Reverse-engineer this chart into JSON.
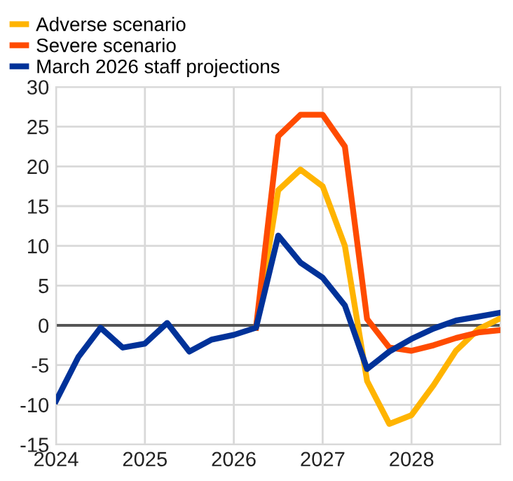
{
  "chart_data": {
    "type": "line",
    "xlim": [
      2024,
      2029
    ],
    "xticks": [
      2024,
      2025,
      2026,
      2027,
      2028
    ],
    "ylim": [
      -15,
      30
    ],
    "yticks": [
      -15,
      -10,
      -5,
      0,
      5,
      10,
      15,
      20,
      25,
      30
    ],
    "grid": true,
    "legend": "top left",
    "ref_lines": [
      {
        "axis": "y",
        "value": 0,
        "color": "#555555"
      }
    ],
    "series": [
      {
        "name": "Adverse scenario",
        "color": "#ffb400",
        "x": [
          2026.25,
          2026.5,
          2026.75,
          2027.0,
          2027.25,
          2027.5,
          2027.75,
          2028.0,
          2028.25,
          2028.5,
          2028.75,
          2029.0
        ],
        "values": [
          -0.3,
          17,
          19.6,
          17.5,
          10,
          -7,
          -12.4,
          -11.3,
          -7.5,
          -3.2,
          -0.5,
          0.9
        ]
      },
      {
        "name": "Severe scenario",
        "color": "#ff4b00",
        "x": [
          2026.25,
          2026.5,
          2026.75,
          2027.0,
          2027.25,
          2027.5,
          2027.75,
          2028.0,
          2028.25,
          2028.5,
          2028.75,
          2029.0
        ],
        "values": [
          -0.3,
          23.8,
          26.5,
          26.5,
          22.5,
          0.8,
          -2.8,
          -3.2,
          -2.5,
          -1.6,
          -0.9,
          -0.6
        ]
      },
      {
        "name": "March 2026 staff projections",
        "color": "#003299",
        "x": [
          2024.0,
          2024.25,
          2024.5,
          2024.75,
          2025.0,
          2025.25,
          2025.5,
          2025.75,
          2026.0,
          2026.25,
          2026.5,
          2026.75,
          2027.0,
          2027.25,
          2027.5,
          2027.75,
          2028.0,
          2028.25,
          2028.5,
          2028.75,
          2029.0
        ],
        "values": [
          -9.5,
          -4,
          -0.3,
          -2.8,
          -2.3,
          0.3,
          -3.3,
          -1.8,
          -1.2,
          -0.3,
          11.3,
          7.9,
          6,
          2.5,
          -5.5,
          -3.3,
          -1.7,
          -0.4,
          0.6,
          1.1,
          1.6
        ]
      }
    ]
  }
}
